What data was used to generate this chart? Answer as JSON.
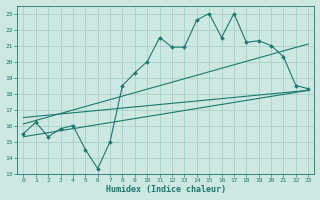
{
  "xlabel": "Humidex (Indice chaleur)",
  "ylabel": "",
  "bg_color": "#cce8e0",
  "grid_color": "#9ecec4",
  "line_color": "#1a7a6e",
  "xlim": [
    -0.5,
    23.5
  ],
  "ylim": [
    13,
    23.5
  ],
  "xticks": [
    0,
    1,
    2,
    3,
    4,
    5,
    6,
    7,
    8,
    9,
    10,
    11,
    12,
    13,
    14,
    15,
    16,
    17,
    18,
    19,
    20,
    21,
    22,
    23
  ],
  "yticks": [
    13,
    14,
    15,
    16,
    17,
    18,
    19,
    20,
    21,
    22,
    23
  ],
  "main_line_x": [
    0,
    1,
    2,
    3,
    4,
    5,
    6,
    7,
    8,
    9,
    10,
    11,
    12,
    13,
    14,
    15,
    16,
    17,
    18,
    19,
    20,
    21,
    22,
    23
  ],
  "main_line_y": [
    15.5,
    16.2,
    15.3,
    15.8,
    16.0,
    14.5,
    13.3,
    15.0,
    18.5,
    19.3,
    20.0,
    21.5,
    20.9,
    20.9,
    22.6,
    23.0,
    21.5,
    23.0,
    21.2,
    21.3,
    21.0,
    20.3,
    18.5,
    18.3
  ],
  "reg_line1": [
    [
      0,
      23
    ],
    [
      16.5,
      18.2
    ]
  ],
  "reg_line2": [
    [
      0,
      23
    ],
    [
      16.1,
      21.1
    ]
  ],
  "reg_line3": [
    [
      0,
      23
    ],
    [
      15.3,
      18.2
    ]
  ]
}
